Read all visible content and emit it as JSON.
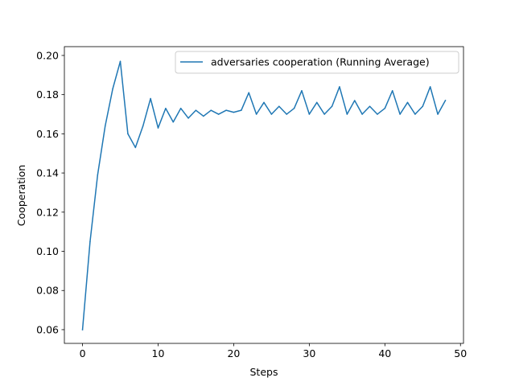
{
  "chart_data": {
    "type": "line",
    "title": "",
    "xlabel": "Steps",
    "ylabel": "Cooperation",
    "xlim": [
      -2.4,
      50.4
    ],
    "ylim": [
      0.053,
      0.2045
    ],
    "x_ticks": [
      0,
      10,
      20,
      30,
      40,
      50
    ],
    "y_ticks": [
      0.06,
      0.08,
      0.1,
      0.12,
      0.14,
      0.16,
      0.18,
      0.2
    ],
    "x_tick_labels": [
      "0",
      "10",
      "20",
      "30",
      "40",
      "50"
    ],
    "y_tick_labels": [
      "0.06",
      "0.08",
      "0.10",
      "0.12",
      "0.14",
      "0.16",
      "0.18",
      "0.20"
    ],
    "grid": false,
    "legend_position": "top-right",
    "series": [
      {
        "name": "adversaries cooperation (Running Average)",
        "color": "#1f77b4",
        "x": [
          0,
          1,
          2,
          3,
          4,
          5,
          6,
          7,
          8,
          9,
          10,
          11,
          12,
          13,
          14,
          15,
          16,
          17,
          18,
          19,
          20,
          21,
          22,
          23,
          24,
          25,
          26,
          27,
          28,
          29,
          30,
          31,
          32,
          33,
          34,
          35,
          36,
          37,
          38,
          39,
          40,
          41,
          42,
          43,
          44,
          45,
          46,
          47,
          48
        ],
        "values": [
          0.06,
          0.105,
          0.139,
          0.164,
          0.183,
          0.197,
          0.16,
          0.153,
          0.164,
          0.178,
          0.163,
          0.173,
          0.166,
          0.173,
          0.168,
          0.172,
          0.169,
          0.172,
          0.17,
          0.172,
          0.171,
          0.172,
          0.181,
          0.17,
          0.176,
          0.17,
          0.174,
          0.17,
          0.173,
          0.182,
          0.17,
          0.176,
          0.17,
          0.174,
          0.184,
          0.17,
          0.177,
          0.17,
          0.174,
          0.17,
          0.173,
          0.182,
          0.17,
          0.176,
          0.17,
          0.174,
          0.184,
          0.17,
          0.177
        ]
      }
    ]
  }
}
